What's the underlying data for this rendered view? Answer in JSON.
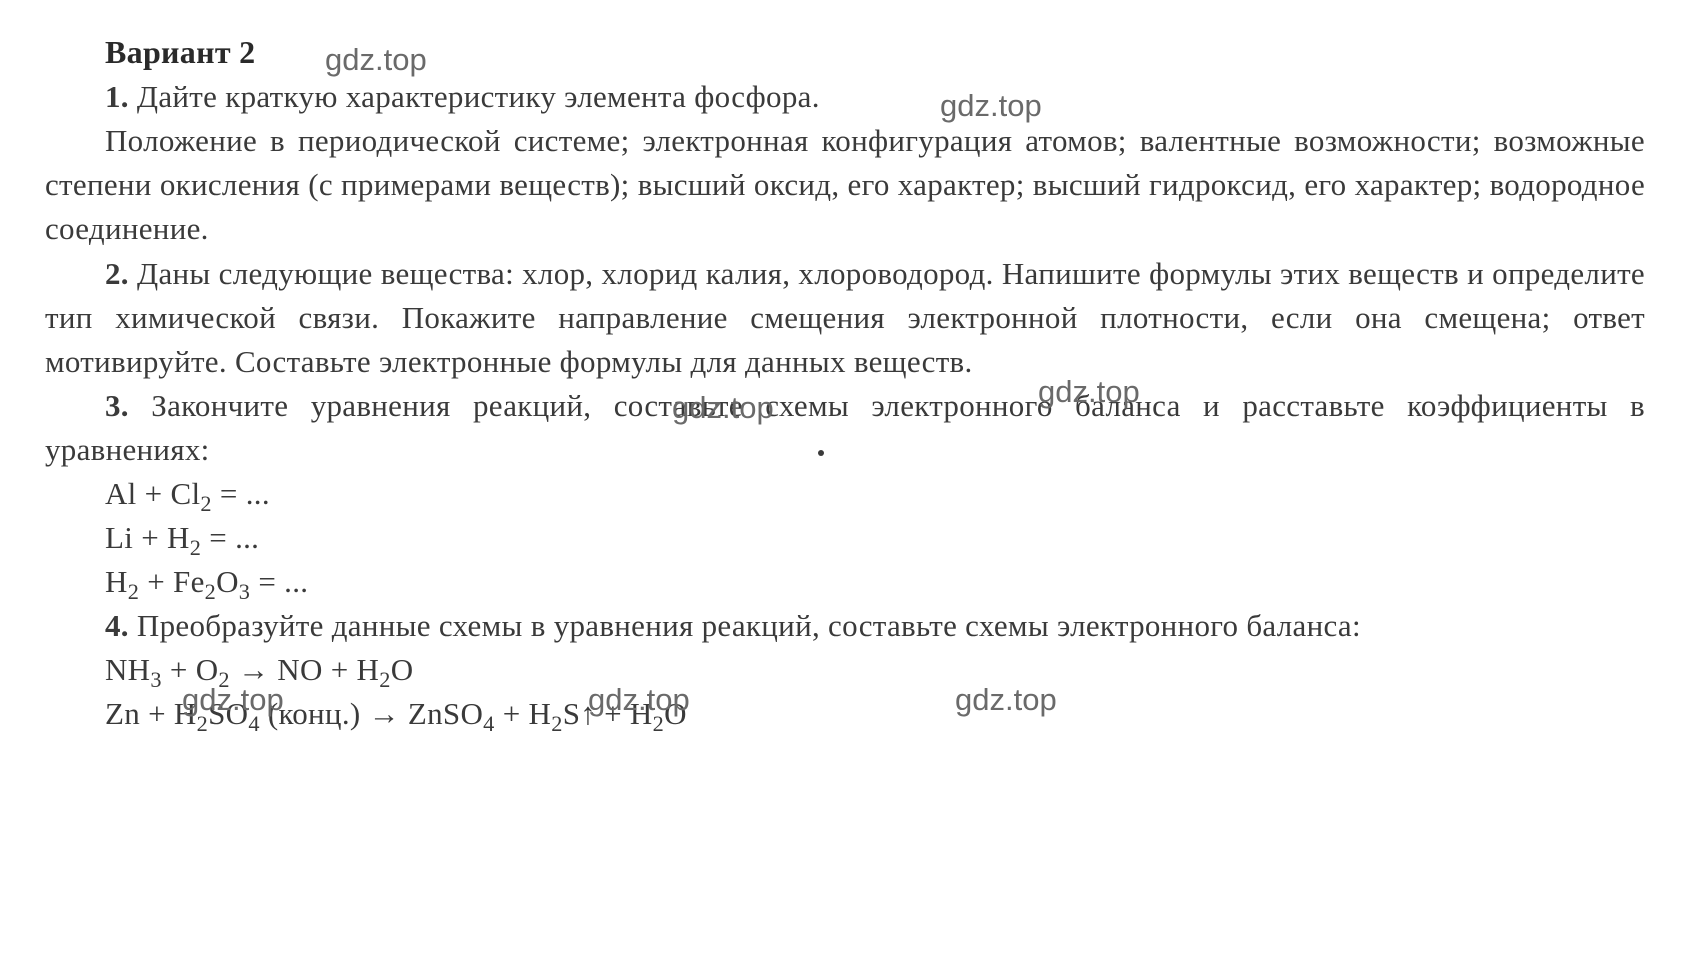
{
  "document": {
    "text_color": "#3a3a3a",
    "background_color": "#ffffff",
    "font_family": "Georgia, 'Times New Roman', serif",
    "font_size_pt": 23,
    "variant_title": "Вариант 2",
    "items": {
      "1": {
        "number": "1.",
        "lead": " Дайте краткую характеристику элемента фосфора.",
        "continuation": "Положение в периодической системе; электронная конфигурация атомов; валентные возможности; возможные степени окисления (с примерами веществ); высший оксид, его характер; высший гидроксид, его характер; водородное соединение."
      },
      "2": {
        "number": "2.",
        "text": " Даны следующие вещества: хлор, хлорид калия, хлороводород. Напишите формулы этих веществ и определите тип химической связи. Покажите направление смещения электронной плотности, если она смещена; ответ мотивируйте. Составьте электронные формулы для данных веществ."
      },
      "3": {
        "number": "3.",
        "text": " Закончите уравнения реакций, составьте схемы электронного баланса и расставьте коэффициенты в уравнениях:",
        "equations": {
          "eq1": {
            "prefix": "Al + Cl",
            "sub1": "2",
            "suffix": " = ..."
          },
          "eq2": {
            "prefix": "Li + H",
            "sub1": "2",
            "suffix": " = ..."
          },
          "eq3": {
            "p1": "H",
            "s1": "2",
            "p2": " + Fe",
            "s2": "2",
            "p3": "O",
            "s3": "3",
            "p4": " = ..."
          }
        }
      },
      "4": {
        "number": "4.",
        "text": " Преобразуйте данные схемы в уравнения реакций, составьте схемы электронного баланса:",
        "equations": {
          "eq1": {
            "p1": "NH",
            "s1": "3",
            "p2": " + O",
            "s2": "2",
            "p3": " → NO + H",
            "s3": "2",
            "p4": "O"
          },
          "eq2": {
            "p1": "Zn + H",
            "s1": "2",
            "p2": "SO",
            "s2": "4",
            "p3": " (конц.) → ZnSO",
            "s3": "4",
            "p4": " + H",
            "s4": "2",
            "p5": "S↑ + H",
            "s5": "2",
            "p6": "O"
          }
        }
      }
    }
  },
  "watermark": {
    "text": "gdz.top",
    "color": "#6a6a6a",
    "font_family": "Arial, sans-serif"
  }
}
